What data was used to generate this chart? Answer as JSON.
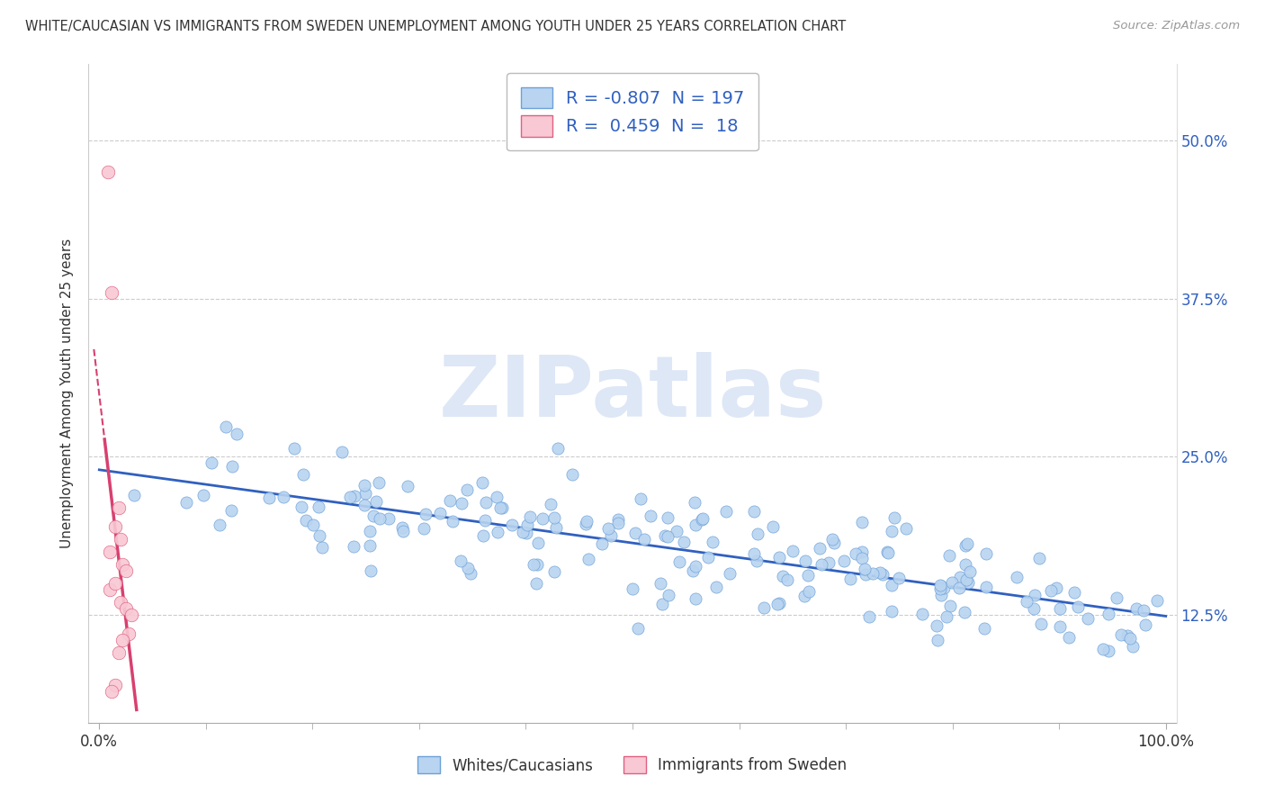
{
  "title": "WHITE/CAUCASIAN VS IMMIGRANTS FROM SWEDEN UNEMPLOYMENT AMONG YOUTH UNDER 25 YEARS CORRELATION CHART",
  "source": "Source: ZipAtlas.com",
  "ylabel": "Unemployment Among Youth under 25 years",
  "blue_R": -0.807,
  "blue_N": 197,
  "pink_R": 0.459,
  "pink_N": 18,
  "blue_scatter_facecolor": "#b8d4f0",
  "blue_scatter_edgecolor": "#6ca0d8",
  "pink_scatter_facecolor": "#f8c8d4",
  "pink_scatter_edgecolor": "#e06080",
  "blue_line_color": "#3060c0",
  "pink_line_color": "#d84070",
  "legend_label_blue": "Whites/Caucasians",
  "legend_label_pink": "Immigrants from Sweden",
  "xlim_min": -0.01,
  "xlim_max": 1.01,
  "ylim_min": 0.04,
  "ylim_max": 0.56,
  "ytick_positions": [
    0.125,
    0.25,
    0.375,
    0.5
  ],
  "ytick_labels": [
    "12.5%",
    "25.0%",
    "37.5%",
    "50.0%"
  ],
  "xtick_positions": [
    0.0,
    1.0
  ],
  "xtick_labels": [
    "0.0%",
    "100.0%"
  ],
  "num_xticks_minor": 9,
  "watermark_text": "ZIPatlas",
  "watermark_color": "#c8d8f0",
  "background_color": "#ffffff",
  "grid_color": "#cccccc",
  "yticklabel_color": "#3060c0",
  "xticklabel_color": "#333333",
  "ylabel_color": "#333333",
  "title_color": "#333333",
  "source_color": "#999999"
}
